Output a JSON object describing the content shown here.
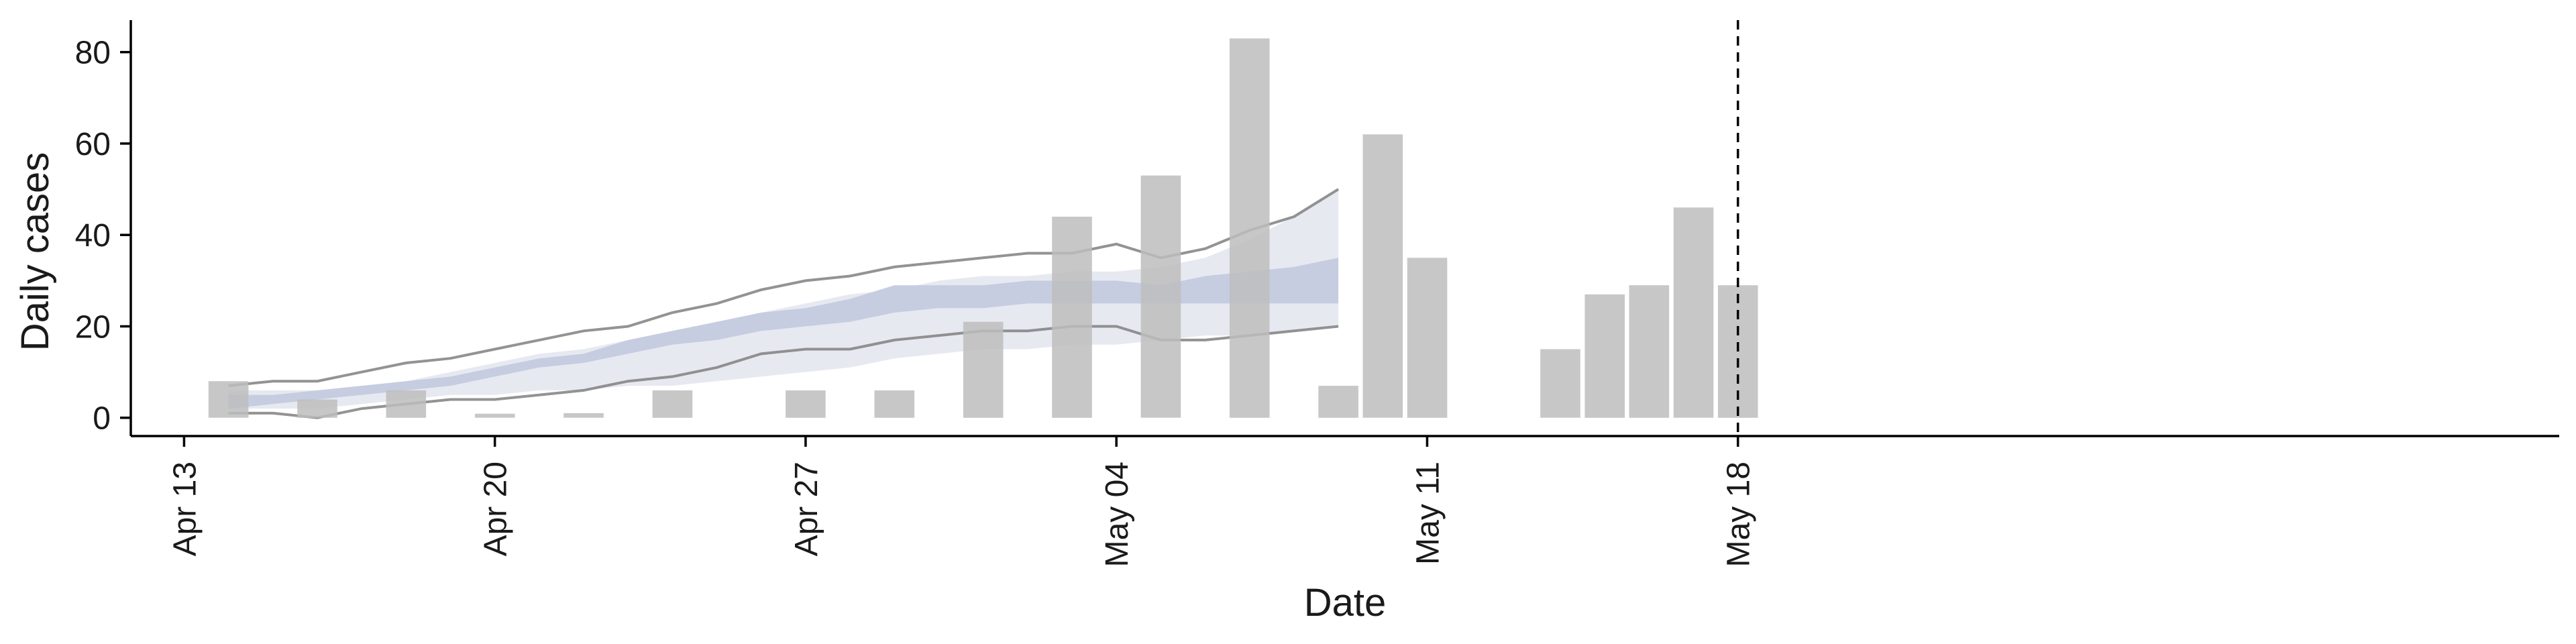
{
  "chart_data": {
    "type": "bar",
    "xlabel": "Date",
    "ylabel": "Daily cases",
    "ylim": [
      -4,
      87
    ],
    "xlim": [
      -1.2,
      53.5
    ],
    "y_ticks": [
      0,
      20,
      40,
      60,
      80
    ],
    "x_ticks": [
      {
        "label": "Apr 13",
        "x": 0
      },
      {
        "label": "Apr 20",
        "x": 7
      },
      {
        "label": "Apr 27",
        "x": 14
      },
      {
        "label": "May 04",
        "x": 21
      },
      {
        "label": "May 11",
        "x": 28
      },
      {
        "label": "May 18",
        "x": 35
      }
    ],
    "grid": false,
    "colors": {
      "bar": "#bdbdbd",
      "outer_band": "#e7e9f1",
      "inner_band": "#c6cde0",
      "bound_line": "#808080",
      "axis": "#000000"
    },
    "reported_cases": {
      "x": [
        1,
        3,
        5,
        7,
        9,
        11,
        14,
        16,
        18,
        20,
        22,
        24,
        26,
        27,
        28,
        31,
        32,
        33,
        34,
        35
      ],
      "values": [
        8,
        4,
        6,
        0,
        1,
        6,
        6,
        6,
        21,
        44,
        53,
        83,
        7,
        62,
        35,
        15,
        27,
        29,
        46,
        29
      ]
    },
    "estimate": {
      "x": [
        1,
        2,
        3,
        4,
        5,
        6,
        7,
        8,
        9,
        10,
        11,
        12,
        13,
        14,
        15,
        16,
        17,
        18,
        19,
        20,
        21,
        22,
        23,
        24,
        25,
        26
      ],
      "outer_lower": [
        2,
        2,
        2,
        3,
        4,
        5,
        5,
        6,
        6,
        7,
        7,
        8,
        9,
        10,
        11,
        13,
        14,
        15,
        15,
        16,
        16,
        17,
        18,
        18,
        19,
        20
      ],
      "outer_upper": [
        6,
        6,
        6,
        7,
        8,
        10,
        12,
        14,
        15,
        17,
        19,
        21,
        23,
        25,
        27,
        28,
        30,
        31,
        31,
        32,
        32,
        33,
        35,
        39,
        44,
        50
      ],
      "inner_lower": [
        2,
        3,
        4,
        5,
        6,
        7,
        9,
        11,
        12,
        14,
        16,
        17,
        19,
        20,
        21,
        23,
        24,
        24,
        25,
        25,
        25,
        25,
        25,
        25,
        25,
        25
      ],
      "inner_upper": [
        5,
        5,
        6,
        7,
        8,
        9,
        11,
        13,
        14,
        17,
        19,
        21,
        23,
        24,
        26,
        29,
        29,
        29,
        30,
        30,
        30,
        29,
        31,
        32,
        33,
        35
      ],
      "upper_line_x": [
        1,
        2,
        3,
        4,
        5,
        6,
        7,
        8,
        9,
        10,
        11,
        12,
        13,
        14,
        15,
        16,
        17,
        18,
        19,
        20,
        21,
        22,
        23,
        24,
        25,
        26
      ],
      "upper_line": [
        7,
        8,
        8,
        10,
        12,
        13,
        15,
        17,
        19,
        20,
        23,
        25,
        28,
        30,
        31,
        33,
        34,
        35,
        36,
        36,
        38,
        35,
        37,
        41,
        44,
        50
      ],
      "lower_line_x": [
        1,
        2,
        3,
        4,
        5,
        6,
        7,
        8,
        9,
        10,
        11,
        12,
        13,
        14,
        15,
        16,
        17,
        18,
        19,
        20,
        21,
        22,
        23,
        24,
        25,
        26
      ],
      "lower_line": [
        1,
        1,
        0,
        2,
        3,
        4,
        4,
        5,
        6,
        8,
        9,
        11,
        14,
        15,
        15,
        17,
        18,
        19,
        19,
        20,
        20,
        17,
        17,
        18,
        19,
        20
      ]
    },
    "vline_x": 35
  }
}
